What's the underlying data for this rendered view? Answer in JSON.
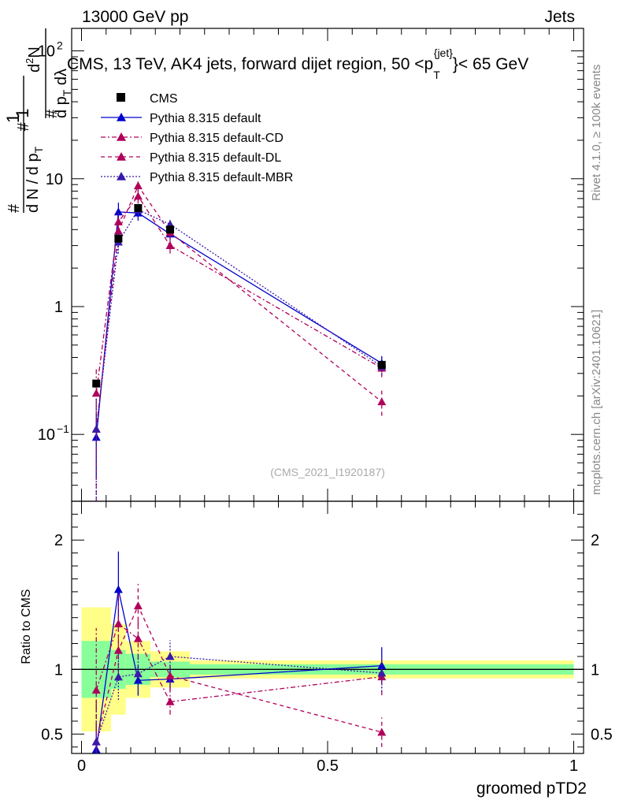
{
  "header": {
    "left": "13000 GeV pp",
    "right": "Jets"
  },
  "chart_data": {
    "type": "scatter",
    "title": "CMS, 13 TeV, AK4 jets, forward dijet region, 50 <p_T^{jet}< 65 GeV",
    "ylabel": "1/(dN/dp_T) d^2N/(dp_T dλ)",
    "xlabel": "groomed pTD2",
    "ratio_ylabel": "Ratio to CMS",
    "yscale": "log",
    "ylim": [
      0.03,
      150
    ],
    "xlim": [
      -0.02,
      1.02
    ],
    "ratio_ylim": [
      0.35,
      2.3
    ],
    "y_ticks": [
      {
        "value": 0.1,
        "base": "10",
        "exp": "−1"
      },
      {
        "value": 1,
        "base": "1",
        "exp": ""
      },
      {
        "value": 10,
        "base": "10",
        "exp": ""
      },
      {
        "value": 100,
        "base": "10",
        "exp": "2"
      }
    ],
    "x_ticks": [
      {
        "value": 0,
        "label": "0"
      },
      {
        "value": 0.5,
        "label": "0.5"
      },
      {
        "value": 1,
        "label": "1"
      }
    ],
    "ratio_ticks": [
      {
        "value": 0.5,
        "label": "0.5"
      },
      {
        "value": 1,
        "label": "1"
      },
      {
        "value": 2,
        "label": "2"
      }
    ],
    "x": [
      0.03,
      0.075,
      0.115,
      0.18,
      0.61
    ],
    "bins": [
      [
        0,
        0.06
      ],
      [
        0.06,
        0.09
      ],
      [
        0.09,
        0.14
      ],
      [
        0.14,
        0.22
      ],
      [
        0.22,
        1.0
      ]
    ],
    "series": [
      {
        "name": "CMS",
        "color": "#000000",
        "marker": "square",
        "line": "none",
        "values": [
          0.25,
          3.4,
          5.9,
          4.0,
          0.35
        ],
        "band_inner": [
          0.22,
          0.15,
          0.12,
          0.06,
          0.04
        ],
        "band_outer": [
          0.48,
          0.35,
          0.22,
          0.14,
          0.07
        ]
      },
      {
        "name": "Pythia 8.315 default",
        "color": "#0000cc",
        "marker": "triangle",
        "line": "solid",
        "values": [
          0.095,
          5.5,
          5.4,
          3.7,
          0.36
        ],
        "errors": [
          0.05,
          1.0,
          0.7,
          0.3,
          0.05
        ]
      },
      {
        "name": "Pythia 8.315 default-CD",
        "color": "#b0005a",
        "marker": "triangle",
        "line": "dashdot",
        "values": [
          0.21,
          4.6,
          7.3,
          3.0,
          0.33
        ],
        "errors": [
          0.12,
          0.8,
          0.9,
          0.4,
          0.05
        ]
      },
      {
        "name": "Pythia 8.315 default-DL",
        "color": "#b0005a",
        "marker": "triangle",
        "line": "dashed",
        "values": [
          0.11,
          3.9,
          8.8,
          3.8,
          0.18
        ],
        "errors": [
          0.08,
          0.8,
          1.0,
          0.45,
          0.04
        ]
      },
      {
        "name": "Pythia 8.315 default-MBR",
        "color": "#3a1aaa",
        "marker": "triangle",
        "line": "dotted",
        "values": [
          0.11,
          3.2,
          5.7,
          4.4,
          0.34
        ],
        "errors": [
          0.08,
          0.6,
          0.8,
          0.5,
          0.05
        ]
      }
    ]
  },
  "watermark": "(CMS_2021_I1920187)",
  "side_top": "Rivet 4.1.0, ≥ 100k events",
  "side_bottom": "mcplots.cern.ch [arXiv:2401.10621]"
}
